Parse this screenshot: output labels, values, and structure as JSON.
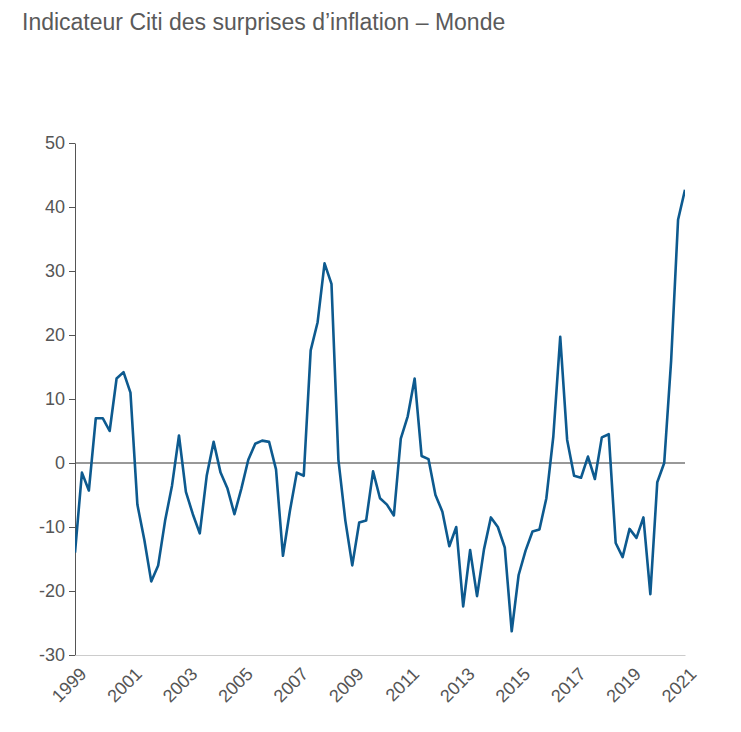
{
  "chart_data": {
    "type": "line",
    "title": "Indicateur Citi des surprises d’inflation – Monde",
    "x": [
      1999,
      1999.25,
      1999.5,
      1999.75,
      2000,
      2000.25,
      2000.5,
      2000.75,
      2001,
      2001.25,
      2001.5,
      2001.75,
      2002,
      2002.25,
      2002.5,
      2002.75,
      2003,
      2003.25,
      2003.5,
      2003.75,
      2004,
      2004.25,
      2004.5,
      2004.75,
      2005,
      2005.25,
      2005.5,
      2005.75,
      2006,
      2006.25,
      2006.5,
      2006.75,
      2007,
      2007.25,
      2007.5,
      2007.75,
      2008,
      2008.25,
      2008.5,
      2008.75,
      2009,
      2009.25,
      2009.5,
      2009.75,
      2010,
      2010.25,
      2010.5,
      2010.75,
      2011,
      2011.25,
      2011.5,
      2011.75,
      2012,
      2012.25,
      2012.5,
      2012.75,
      2013,
      2013.25,
      2013.5,
      2013.75,
      2014,
      2014.25,
      2014.5,
      2014.75,
      2015,
      2015.25,
      2015.5,
      2015.75,
      2016,
      2016.25,
      2016.5,
      2016.75,
      2017,
      2017.25,
      2017.5,
      2017.75,
      2018,
      2018.25,
      2018.5,
      2018.75,
      2019,
      2019.25,
      2019.5,
      2019.75,
      2020,
      2020.25,
      2020.5,
      2020.75,
      2021
    ],
    "values": [
      -14,
      -1.5,
      -4.3,
      7,
      7,
      5,
      13.2,
      14.2,
      11,
      -6.5,
      -12,
      -18.5,
      -16,
      -9,
      -3.5,
      4.3,
      -4.5,
      -8,
      -11,
      -2,
      3.3,
      -1.5,
      -4,
      -8,
      -4,
      0.5,
      3,
      3.5,
      3.3,
      -1,
      -14.5,
      -7.5,
      -1.5,
      -2,
      17.6,
      22,
      31.2,
      28,
      0.5,
      -9,
      -16,
      -9.3,
      -9,
      -1.3,
      -5.5,
      -6.5,
      -8.2,
      3.8,
      7.3,
      13.2,
      1.1,
      0.6,
      -5,
      -7.6,
      -13,
      -10,
      -22.4,
      -13.6,
      -20.8,
      -13.5,
      -8.5,
      -10,
      -13.2,
      -26.3,
      -17.5,
      -13.7,
      -10.7,
      -10.4,
      -5.5,
      4.1,
      19.7,
      3.6,
      -2,
      -2.3,
      1,
      -2.5,
      4,
      4.5,
      -12.5,
      -14.7,
      -10.3,
      -11.7,
      -8.5,
      -20.5,
      -3,
      0,
      16,
      38,
      42.7
    ],
    "color": "#0d5a8f",
    "xlim": [
      1999,
      2021
    ],
    "xticks": [
      1999,
      2001,
      2003,
      2005,
      2007,
      2009,
      2011,
      2013,
      2015,
      2017,
      2019,
      2021
    ],
    "ylim": [
      -30,
      50
    ],
    "yticks": [
      -30,
      -20,
      -10,
      0,
      10,
      20,
      30,
      40,
      50
    ],
    "grid": false
  }
}
